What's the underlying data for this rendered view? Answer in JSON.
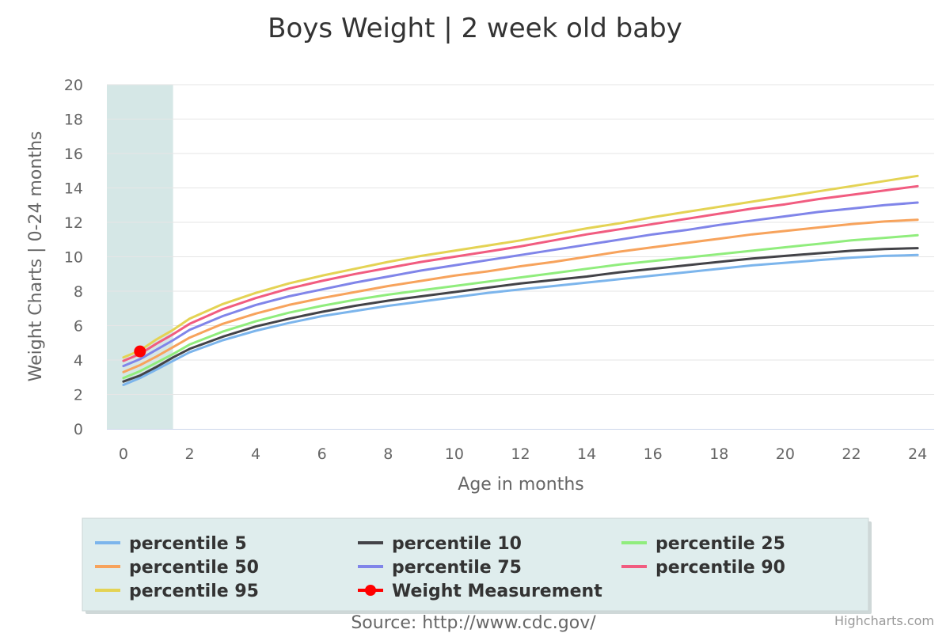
{
  "chart_data": {
    "type": "line",
    "title": "Boys Weight | 2 week old baby",
    "xlabel": "Age in months",
    "ylabel": "Weight Charts | 0-24 months",
    "xlim": [
      0,
      24
    ],
    "ylim": [
      0,
      20
    ],
    "x_ticks": [
      0,
      2,
      4,
      6,
      8,
      10,
      12,
      14,
      16,
      18,
      20,
      22,
      24
    ],
    "y_ticks": [
      0,
      2,
      4,
      6,
      8,
      10,
      12,
      14,
      16,
      18,
      20
    ],
    "grid": "horizontal",
    "highlight_band": {
      "x_from": -0.5,
      "x_to": 1.5,
      "color": "#d5e7e6"
    },
    "x": [
      0,
      0.5,
      1,
      1.5,
      2,
      3,
      4,
      5,
      6,
      7,
      8,
      9,
      10,
      11,
      12,
      13,
      14,
      15,
      16,
      17,
      18,
      19,
      20,
      21,
      22,
      23,
      24
    ],
    "series": [
      {
        "name": "percentile 5",
        "color": "#7cb5ec",
        "values": [
          2.55,
          2.95,
          3.45,
          3.95,
          4.45,
          5.15,
          5.7,
          6.15,
          6.55,
          6.85,
          7.15,
          7.4,
          7.65,
          7.9,
          8.1,
          8.3,
          8.5,
          8.7,
          8.9,
          9.1,
          9.3,
          9.5,
          9.65,
          9.8,
          9.95,
          10.05,
          10.1
        ]
      },
      {
        "name": "percentile 10",
        "color": "#434348",
        "values": [
          2.75,
          3.1,
          3.6,
          4.15,
          4.65,
          5.35,
          5.95,
          6.4,
          6.8,
          7.15,
          7.45,
          7.7,
          7.95,
          8.2,
          8.45,
          8.65,
          8.85,
          9.1,
          9.3,
          9.5,
          9.7,
          9.9,
          10.05,
          10.2,
          10.35,
          10.45,
          10.5
        ]
      },
      {
        "name": "percentile 25",
        "color": "#90ed7d",
        "values": [
          2.95,
          3.35,
          3.85,
          4.35,
          4.9,
          5.65,
          6.25,
          6.75,
          7.15,
          7.5,
          7.8,
          8.05,
          8.3,
          8.55,
          8.8,
          9.05,
          9.3,
          9.55,
          9.75,
          9.95,
          10.15,
          10.35,
          10.55,
          10.75,
          10.95,
          11.1,
          11.25
        ]
      },
      {
        "name": "percentile 50",
        "color": "#f7a35c",
        "values": [
          3.3,
          3.7,
          4.2,
          4.75,
          5.3,
          6.1,
          6.7,
          7.2,
          7.6,
          7.95,
          8.3,
          8.6,
          8.9,
          9.15,
          9.45,
          9.7,
          10.0,
          10.3,
          10.55,
          10.8,
          11.05,
          11.3,
          11.5,
          11.7,
          11.9,
          12.05,
          12.15
        ]
      },
      {
        "name": "percentile 75",
        "color": "#8085e9",
        "values": [
          3.65,
          4.05,
          4.6,
          5.15,
          5.75,
          6.55,
          7.2,
          7.7,
          8.1,
          8.5,
          8.85,
          9.2,
          9.5,
          9.8,
          10.1,
          10.4,
          10.7,
          11.0,
          11.3,
          11.55,
          11.85,
          12.1,
          12.35,
          12.6,
          12.8,
          13.0,
          13.15
        ]
      },
      {
        "name": "percentile 90",
        "color": "#f15c80",
        "values": [
          3.95,
          4.35,
          4.95,
          5.5,
          6.1,
          6.95,
          7.6,
          8.15,
          8.6,
          9.0,
          9.35,
          9.7,
          10.0,
          10.3,
          10.6,
          10.95,
          11.3,
          11.6,
          11.9,
          12.2,
          12.5,
          12.8,
          13.05,
          13.35,
          13.6,
          13.85,
          14.1
        ]
      },
      {
        "name": "percentile 95",
        "color": "#e4d354",
        "values": [
          4.15,
          4.55,
          5.2,
          5.75,
          6.4,
          7.25,
          7.9,
          8.45,
          8.9,
          9.3,
          9.7,
          10.05,
          10.35,
          10.65,
          10.95,
          11.3,
          11.65,
          11.95,
          12.3,
          12.6,
          12.9,
          13.2,
          13.5,
          13.8,
          14.1,
          14.4,
          14.7
        ]
      }
    ],
    "measurement": {
      "name": "Weight Measurement",
      "color": "#ff0000",
      "x": 0.5,
      "y": 4.5
    },
    "legend_position": "bottom"
  },
  "source": "Source: http://www.cdc.gov/",
  "credits": "Highcharts.com"
}
